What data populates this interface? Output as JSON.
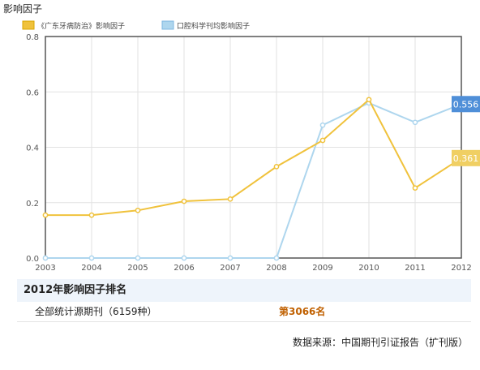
{
  "chart_data": {
    "type": "line",
    "title": "影响因子",
    "x": [
      "2003",
      "2004",
      "2005",
      "2006",
      "2007",
      "2008",
      "2009",
      "2010",
      "2011",
      "2012"
    ],
    "series": [
      {
        "name": "《广东牙病防治》影响因子",
        "color": "#f0c23c",
        "values": [
          0.155,
          0.155,
          0.172,
          0.205,
          0.213,
          0.33,
          0.425,
          0.572,
          0.253,
          0.361
        ],
        "last_label": "0.361"
      },
      {
        "name": "口腔科学刊均影响因子",
        "color": "#aed6ee",
        "values": [
          0,
          0,
          0,
          0,
          0,
          0,
          0.48,
          0.56,
          0.49,
          0.556
        ],
        "last_label": "0.556"
      }
    ],
    "yticks": [
      "0.0",
      "0.2",
      "0.4",
      "0.6",
      "0.8"
    ],
    "ylim": [
      0,
      0.8
    ],
    "grid": true,
    "legend": "top-left"
  },
  "ranking": {
    "header": "2012年影响因子排名",
    "category": "全部统计源期刊（6159种）",
    "rank": "第3066名"
  },
  "source": "数据来源：中国期刊引证报告（扩刊版）"
}
